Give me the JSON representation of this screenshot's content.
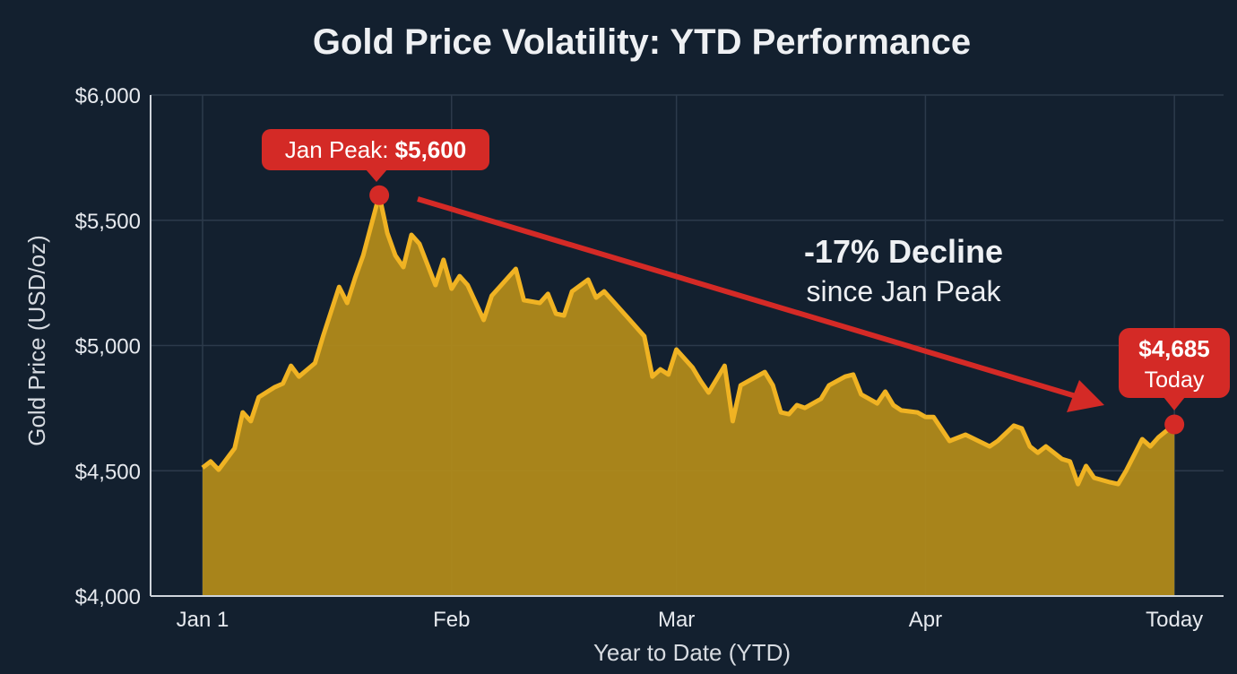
{
  "chart_data": {
    "type": "area",
    "title": "Gold Price Volatility: YTD Performance",
    "xlabel": "Year to Date (YTD)",
    "ylabel": "Gold Price (USD/oz)",
    "ylim": [
      4000,
      6000
    ],
    "yticks": [
      {
        "value": 4000,
        "label": "$4,000"
      },
      {
        "value": 4500,
        "label": "$4,500"
      },
      {
        "value": 5000,
        "label": "$5,000"
      },
      {
        "value": 5500,
        "label": "$5,500"
      },
      {
        "value": 6000,
        "label": "$6,000"
      }
    ],
    "xticks": [
      {
        "date": "01-01",
        "label": "Jan 1"
      },
      {
        "date": "02-01",
        "label": "Feb"
      },
      {
        "date": "03-01",
        "label": "Mar"
      },
      {
        "date": "04-01",
        "label": "Apr"
      },
      {
        "date": "05-02",
        "label": "Today"
      }
    ],
    "grid": true,
    "colors": {
      "background": "#13202f",
      "line": "#f0b323",
      "fill": "#b08a1a",
      "annotation": "#d42a26",
      "grid": "#2c3a4b"
    },
    "series": [
      {
        "points": [
          [
            "01-01",
            4512
          ],
          [
            "01-02",
            4537
          ],
          [
            "01-03",
            4504
          ],
          [
            "01-05",
            4590
          ],
          [
            "01-06",
            4733
          ],
          [
            "01-07",
            4698
          ],
          [
            "01-08",
            4794
          ],
          [
            "01-10",
            4834
          ],
          [
            "01-11",
            4848
          ],
          [
            "01-12",
            4919
          ],
          [
            "01-13",
            4876
          ],
          [
            "01-15",
            4930
          ],
          [
            "01-16",
            5037
          ],
          [
            "01-18",
            5234
          ],
          [
            "01-19",
            5170
          ],
          [
            "01-20",
            5270
          ],
          [
            "01-21",
            5360
          ],
          [
            "01-23",
            5600
          ],
          [
            "01-24",
            5449
          ],
          [
            "01-25",
            5360
          ],
          [
            "01-26",
            5313
          ],
          [
            "01-27",
            5442
          ],
          [
            "01-28",
            5406
          ],
          [
            "01-30",
            5241
          ],
          [
            "01-31",
            5342
          ],
          [
            "02-01",
            5227
          ],
          [
            "02-02",
            5277
          ],
          [
            "02-03",
            5241
          ],
          [
            "02-05",
            5102
          ],
          [
            "02-06",
            5199
          ],
          [
            "02-07",
            5234
          ],
          [
            "02-09",
            5306
          ],
          [
            "02-10",
            5181
          ],
          [
            "02-12",
            5170
          ],
          [
            "02-13",
            5206
          ],
          [
            "02-14",
            5127
          ],
          [
            "02-15",
            5120
          ],
          [
            "02-16",
            5216
          ],
          [
            "02-18",
            5263
          ],
          [
            "02-19",
            5191
          ],
          [
            "02-20",
            5216
          ],
          [
            "02-22",
            5145
          ],
          [
            "02-23",
            5109
          ],
          [
            "02-25",
            5037
          ],
          [
            "02-26",
            4876
          ],
          [
            "02-27",
            4905
          ],
          [
            "02-28",
            4884
          ],
          [
            "03-01",
            4984
          ],
          [
            "03-03",
            4912
          ],
          [
            "03-04",
            4859
          ],
          [
            "03-05",
            4812
          ],
          [
            "03-07",
            4919
          ],
          [
            "03-08",
            4698
          ],
          [
            "03-09",
            4841
          ],
          [
            "03-10",
            4859
          ],
          [
            "03-12",
            4894
          ],
          [
            "03-13",
            4841
          ],
          [
            "03-14",
            4733
          ],
          [
            "03-15",
            4726
          ],
          [
            "03-16",
            4762
          ],
          [
            "03-17",
            4751
          ],
          [
            "03-19",
            4787
          ],
          [
            "03-20",
            4841
          ],
          [
            "03-22",
            4876
          ],
          [
            "03-23",
            4884
          ],
          [
            "03-24",
            4805
          ],
          [
            "03-26",
            4769
          ],
          [
            "03-27",
            4816
          ],
          [
            "03-28",
            4762
          ],
          [
            "03-29",
            4741
          ],
          [
            "03-31",
            4733
          ],
          [
            "04-01",
            4715
          ],
          [
            "04-02",
            4715
          ],
          [
            "04-04",
            4619
          ],
          [
            "04-06",
            4644
          ],
          [
            "04-09",
            4597
          ],
          [
            "04-10",
            4619
          ],
          [
            "04-12",
            4680
          ],
          [
            "04-13",
            4669
          ],
          [
            "04-14",
            4597
          ],
          [
            "04-15",
            4572
          ],
          [
            "04-16",
            4597
          ],
          [
            "04-18",
            4547
          ],
          [
            "04-19",
            4537
          ],
          [
            "04-20",
            4447
          ],
          [
            "04-21",
            4519
          ],
          [
            "04-22",
            4472
          ],
          [
            "04-24",
            4454
          ],
          [
            "04-25",
            4447
          ],
          [
            "04-26",
            4501
          ],
          [
            "04-28",
            4626
          ],
          [
            "04-29",
            4597
          ],
          [
            "04-30",
            4633
          ],
          [
            "05-02",
            4685
          ]
        ]
      }
    ],
    "annotations": {
      "peak": {
        "date": "01-23",
        "value": 5600,
        "label_prefix": "Jan Peak: ",
        "label_value": "$5,600"
      },
      "today": {
        "date": "05-02",
        "value": 4685,
        "label_value": "$4,685",
        "label_sub": "Today"
      },
      "trend": {
        "headline": "-17% Decline",
        "subtext": "since Jan Peak"
      }
    }
  }
}
